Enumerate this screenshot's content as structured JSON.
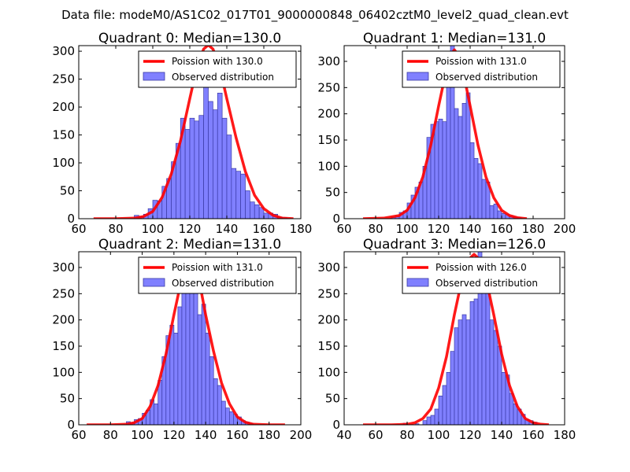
{
  "figure": {
    "suptitle": "Data file: modeM0/AS1C02_017T01_9000000848_06402cztM0_level2_quad_clean.evt"
  },
  "colors": {
    "bar_fill": "#8080ff",
    "bar_edge": "#3a3aa6",
    "curve": "#ff0000",
    "axes": "#000000",
    "background": "#ffffff"
  },
  "chart_data": [
    {
      "type": "bar",
      "title": "Quadrant 0: Median=130.0",
      "xlim": [
        60,
        180
      ],
      "ylim": [
        0,
        310
      ],
      "xticks": [
        60,
        80,
        100,
        120,
        140,
        160,
        180
      ],
      "yticks": [
        0,
        50,
        100,
        150,
        200,
        250,
        300
      ],
      "legend": {
        "location": "top-right",
        "labels": [
          "Poission with 130.0",
          "Observed distribution"
        ]
      },
      "histogram": {
        "name": "Observed distribution",
        "bin_width": 2.5,
        "bin_starts": [
          90,
          92.5,
          95,
          97.5,
          100,
          102.5,
          105,
          107.5,
          110,
          112.5,
          115,
          117.5,
          120,
          122.5,
          125,
          127.5,
          130,
          132.5,
          135,
          137.5,
          140,
          142.5,
          145,
          147.5,
          150,
          152.5,
          155,
          157.5,
          160,
          162.5,
          165,
          167.5,
          170
        ],
        "counts": [
          6,
          4,
          8,
          18,
          33,
          32,
          58,
          72,
          102,
          135,
          180,
          160,
          180,
          175,
          185,
          285,
          210,
          195,
          225,
          180,
          150,
          90,
          85,
          80,
          50,
          30,
          25,
          20,
          10,
          10,
          8,
          3,
          2
        ]
      },
      "curve": {
        "name": "Poission with 130.0",
        "x": [
          68,
          80,
          90,
          95,
          100,
          105,
          110,
          115,
          120,
          122.5,
          125,
          127.5,
          130,
          132.5,
          135,
          137.5,
          140,
          145,
          150,
          155,
          160,
          165,
          170,
          176
        ],
        "y": [
          0,
          0,
          1,
          4,
          13,
          38,
          80,
          140,
          215,
          252,
          282,
          304,
          311,
          304,
          282,
          252,
          215,
          145,
          85,
          42,
          18,
          6,
          1,
          0
        ]
      }
    },
    {
      "type": "bar",
      "title": "Quadrant 1: Median=131.0",
      "xlim": [
        60,
        200
      ],
      "ylim": [
        0,
        330
      ],
      "xticks": [
        60,
        80,
        100,
        120,
        140,
        160,
        180,
        200
      ],
      "yticks": [
        0,
        50,
        100,
        150,
        200,
        250,
        300
      ],
      "legend": {
        "location": "top-right",
        "labels": [
          "Poission with 131.0",
          "Observed distribution"
        ]
      },
      "histogram": {
        "name": "Observed distribution",
        "bin_width": 2.5,
        "bin_starts": [
          90,
          92.5,
          95,
          97.5,
          100,
          102.5,
          105,
          107.5,
          110,
          112.5,
          115,
          117.5,
          120,
          122.5,
          125,
          127.5,
          130,
          132.5,
          135,
          137.5,
          140,
          142.5,
          145,
          147.5,
          150,
          152.5,
          155,
          157.5,
          160,
          162.5,
          165,
          167.5,
          170
        ],
        "counts": [
          3,
          5,
          12,
          15,
          30,
          45,
          60,
          70,
          100,
          155,
          180,
          185,
          190,
          185,
          255,
          330,
          210,
          195,
          220,
          240,
          145,
          115,
          105,
          75,
          70,
          25,
          28,
          15,
          10,
          8,
          5,
          3,
          2
        ]
      },
      "curve": {
        "name": "Poission with 131.0",
        "x": [
          72,
          85,
          95,
          100,
          105,
          110,
          115,
          120,
          125,
          127.5,
          130,
          132.5,
          135,
          137.5,
          140,
          145,
          150,
          155,
          160,
          165,
          170,
          176
        ],
        "y": [
          0,
          1,
          6,
          16,
          40,
          80,
          140,
          215,
          285,
          312,
          322,
          312,
          285,
          252,
          215,
          140,
          80,
          40,
          16,
          6,
          2,
          0
        ]
      }
    },
    {
      "type": "bar",
      "title": "Quadrant 2: Median=131.0",
      "xlim": [
        60,
        200
      ],
      "ylim": [
        0,
        330
      ],
      "xticks": [
        60,
        80,
        100,
        120,
        140,
        160,
        180,
        200
      ],
      "yticks": [
        0,
        50,
        100,
        150,
        200,
        250,
        300
      ],
      "legend": {
        "location": "top-right",
        "labels": [
          "Poission with 131.0",
          "Observed distribution"
        ]
      },
      "histogram": {
        "name": "Observed distribution",
        "bin_width": 2.5,
        "bin_starts": [
          90,
          92.5,
          95,
          97.5,
          100,
          102.5,
          105,
          107.5,
          110,
          112.5,
          115,
          117.5,
          120,
          122.5,
          125,
          127.5,
          130,
          132.5,
          135,
          137.5,
          140,
          142.5,
          145,
          147.5,
          150,
          152.5,
          155,
          157.5,
          160,
          162.5,
          165,
          167.5
        ],
        "counts": [
          6,
          4,
          10,
          12,
          22,
          28,
          48,
          40,
          85,
          130,
          170,
          190,
          175,
          225,
          265,
          295,
          255,
          300,
          210,
          230,
          175,
          130,
          88,
          75,
          45,
          32,
          25,
          20,
          15,
          8,
          5,
          3
        ]
      },
      "curve": {
        "name": "Poission with 131.0",
        "x": [
          65,
          80,
          90,
          95,
          100,
          105,
          110,
          115,
          120,
          125,
          127.5,
          130,
          132.5,
          135,
          137.5,
          140,
          145,
          150,
          155,
          160,
          165,
          170,
          180,
          190
        ],
        "y": [
          0,
          0,
          1,
          4,
          12,
          35,
          75,
          135,
          210,
          280,
          300,
          305,
          300,
          280,
          250,
          210,
          140,
          80,
          40,
          15,
          5,
          1,
          0,
          0
        ]
      }
    },
    {
      "type": "bar",
      "title": "Quadrant 3: Median=126.0",
      "xlim": [
        40,
        180
      ],
      "ylim": [
        0,
        330
      ],
      "xticks": [
        40,
        60,
        80,
        100,
        120,
        140,
        160,
        180
      ],
      "yticks": [
        0,
        50,
        100,
        150,
        200,
        250,
        300
      ],
      "legend": {
        "location": "top-right",
        "labels": [
          "Poission with 126.0",
          "Observed distribution"
        ]
      },
      "histogram": {
        "name": "Observed distribution",
        "bin_width": 2.5,
        "bin_starts": [
          77.5,
          85,
          90,
          92.5,
          95,
          97.5,
          100,
          102.5,
          105,
          107.5,
          110,
          112.5,
          115,
          117.5,
          120,
          122.5,
          125,
          127.5,
          130,
          132.5,
          135,
          137.5,
          140,
          142.5,
          145,
          147.5,
          150,
          152.5,
          155,
          157.5,
          160
        ],
        "counts": [
          3,
          2,
          8,
          15,
          18,
          30,
          55,
          75,
          100,
          140,
          185,
          200,
          210,
          200,
          235,
          240,
          330,
          260,
          300,
          200,
          180,
          150,
          100,
          95,
          60,
          40,
          30,
          20,
          10,
          8,
          5
        ]
      },
      "curve": {
        "name": "Poission with 126.0",
        "x": [
          52,
          70,
          80,
          85,
          90,
          95,
          100,
          105,
          110,
          115,
          120,
          122.5,
          125,
          127.5,
          130,
          135,
          140,
          145,
          150,
          155,
          160,
          165,
          170
        ],
        "y": [
          0,
          0,
          1,
          4,
          12,
          30,
          70,
          130,
          210,
          280,
          318,
          325,
          318,
          300,
          280,
          210,
          135,
          75,
          35,
          12,
          4,
          1,
          0
        ]
      }
    }
  ]
}
